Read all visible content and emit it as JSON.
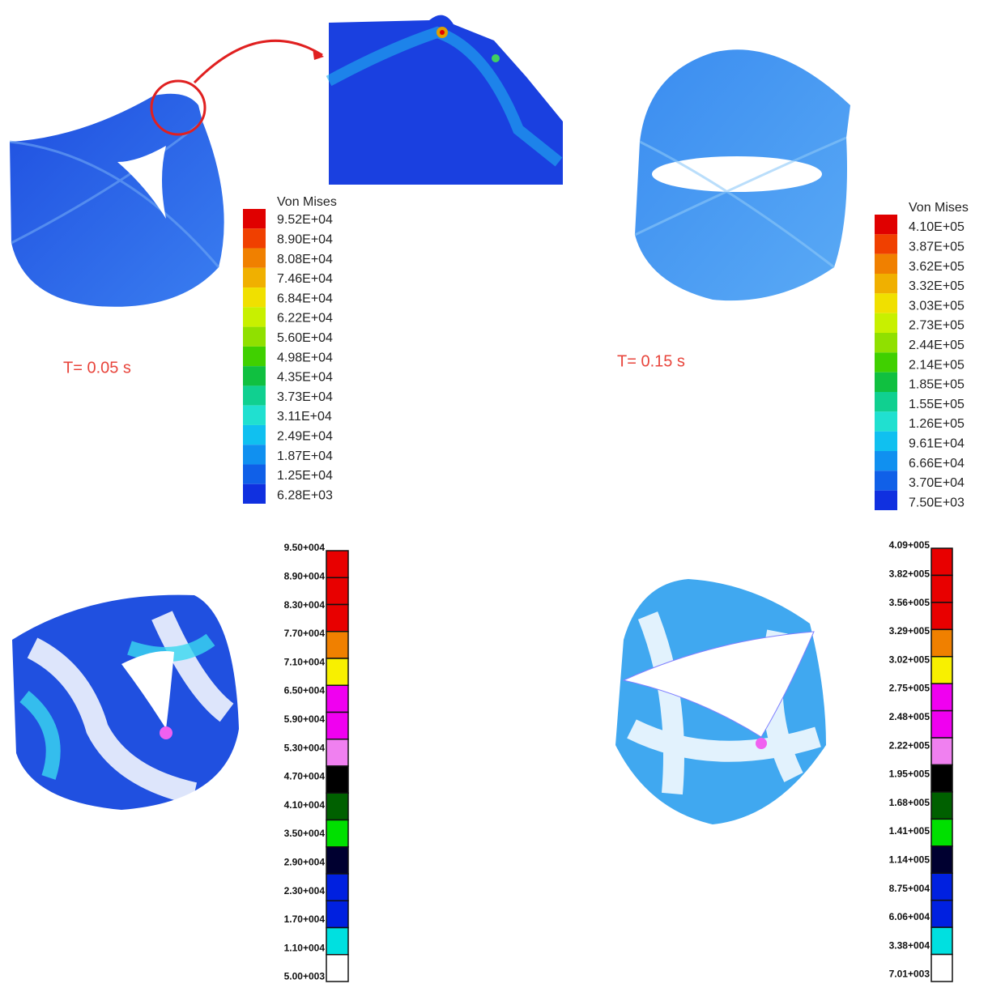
{
  "panels": [
    {
      "time_label": "T= 0.05 s",
      "legend": {
        "title": "Von Mises",
        "labels": [
          "9.52E+04",
          "8.90E+04",
          "8.08E+04",
          "7.46E+04",
          "6.84E+04",
          "6.22E+04",
          "5.60E+04",
          "4.98E+04",
          "4.35E+04",
          "3.73E+04",
          "3.11E+04",
          "2.49E+04",
          "1.87E+04",
          "1.25E+04",
          "6.28E+03"
        ],
        "colors": [
          "#e00000",
          "#f04000",
          "#f08000",
          "#f0b000",
          "#f0e000",
          "#c8f000",
          "#90e000",
          "#40d000",
          "#10c040",
          "#10d090",
          "#20e0d0",
          "#10c0f0",
          "#1090f0",
          "#1060e8",
          "#1030e0"
        ]
      }
    },
    {
      "time_label": "T= 0.15 s",
      "legend": {
        "title": "Von Mises",
        "labels": [
          "4.10E+05",
          "3.87E+05",
          "3.62E+05",
          "3.32E+05",
          "3.03E+05",
          "2.73E+05",
          "2.44E+05",
          "2.14E+05",
          "1.85E+05",
          "1.55E+05",
          "1.26E+05",
          "9.61E+04",
          "6.66E+04",
          "3.70E+04",
          "7.50E+03"
        ],
        "colors": [
          "#e00000",
          "#f04000",
          "#f08000",
          "#f0b000",
          "#f0e000",
          "#c8f000",
          "#90e000",
          "#40d000",
          "#10c040",
          "#10d090",
          "#20e0d0",
          "#10c0f0",
          "#1090f0",
          "#1060e8",
          "#1030e0"
        ]
      }
    },
    {
      "legend": {
        "labels": [
          "9.50+004",
          "8.90+004",
          "8.30+004",
          "7.70+004",
          "7.10+004",
          "6.50+004",
          "5.90+004",
          "5.30+004",
          "4.70+004",
          "4.10+004",
          "3.50+004",
          "2.90+004",
          "2.30+004",
          "1.70+004",
          "1.10+004",
          "5.00+003"
        ],
        "colors": [
          "#e80000",
          "#e80000",
          "#e80000",
          "#f08000",
          "#f8f000",
          "#f000f0",
          "#f000f0",
          "#f080f0",
          "#000000",
          "#006000",
          "#00e000",
          "#000030",
          "#0020e0",
          "#0020e0",
          "#00e0e0",
          "#ffffff"
        ]
      }
    },
    {
      "legend": {
        "labels": [
          "4.09+005",
          "3.82+005",
          "3.56+005",
          "3.29+005",
          "3.02+005",
          "2.75+005",
          "2.48+005",
          "2.22+005",
          "1.95+005",
          "1.68+005",
          "1.41+005",
          "1.14+005",
          "8.75+004",
          "6.06+004",
          "3.38+004",
          "7.01+003"
        ],
        "colors": [
          "#e80000",
          "#e80000",
          "#e80000",
          "#f08000",
          "#f8f000",
          "#f000f0",
          "#f000f0",
          "#f080f0",
          "#000000",
          "#006000",
          "#00e000",
          "#000030",
          "#0020e0",
          "#0020e0",
          "#00e0e0",
          "#ffffff"
        ]
      }
    }
  ]
}
